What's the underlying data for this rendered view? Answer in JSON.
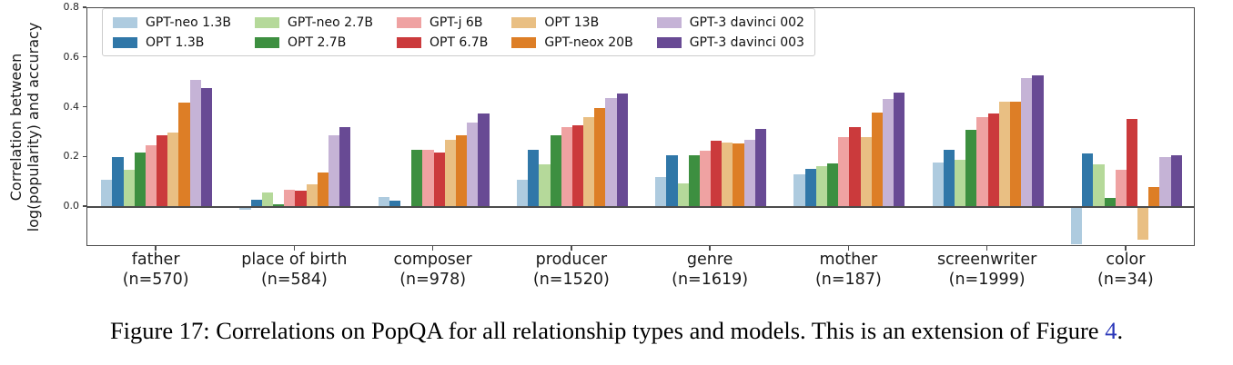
{
  "figure": {
    "caption_prefix": "Figure 17: Correlations on PopQA for all relationship types and models. This is an extension of Figure ",
    "caption_link": "4",
    "caption_suffix": ".",
    "link_color": "#2936b9"
  },
  "chart_data": {
    "type": "bar",
    "title": "",
    "ylabel_line1": "Correlation between",
    "ylabel_line2": "log(popularity) and accuracy",
    "xlabel": "",
    "ylim": [
      -0.16,
      0.8
    ],
    "yticks": [
      0.0,
      0.2,
      0.4,
      0.6,
      0.8
    ],
    "grid": false,
    "legend_position": "upper-left",
    "legend_columns": 5,
    "axis_color": "#4b4b4b",
    "categories": [
      {
        "label": "father",
        "count": "(n=570)"
      },
      {
        "label": "place of birth",
        "count": "(n=584)"
      },
      {
        "label": "composer",
        "count": "(n=978)"
      },
      {
        "label": "producer",
        "count": "(n=1520)"
      },
      {
        "label": "genre",
        "count": "(n=1619)"
      },
      {
        "label": "mother",
        "count": "(n=187)"
      },
      {
        "label": "screenwriter",
        "count": "(n=1999)"
      },
      {
        "label": "color",
        "count": "(n=34)"
      }
    ],
    "series": [
      {
        "name": "GPT-neo 1.3B",
        "color": "#aecbdf",
        "values": [
          0.11,
          -0.01,
          0.04,
          0.11,
          0.12,
          0.13,
          0.18,
          -0.15
        ]
      },
      {
        "name": "OPT 1.3B",
        "color": "#3077a8",
        "values": [
          0.2,
          0.03,
          0.025,
          0.23,
          0.21,
          0.155,
          0.23,
          0.215
        ]
      },
      {
        "name": "GPT-neo 2.7B",
        "color": "#b5d99a",
        "values": [
          0.15,
          0.06,
          0.005,
          0.17,
          0.095,
          0.165,
          0.19,
          0.17
        ]
      },
      {
        "name": "OPT 2.7B",
        "color": "#3d8f40",
        "values": [
          0.22,
          0.01,
          0.23,
          0.29,
          0.21,
          0.175,
          0.31,
          0.035
        ]
      },
      {
        "name": "GPT-j 6B",
        "color": "#efa2a2",
        "values": [
          0.25,
          0.07,
          0.23,
          0.32,
          0.225,
          0.28,
          0.36,
          0.15
        ]
      },
      {
        "name": "OPT 6.7B",
        "color": "#cb3a3c",
        "values": [
          0.29,
          0.065,
          0.22,
          0.33,
          0.265,
          0.32,
          0.375,
          0.355
        ]
      },
      {
        "name": "OPT 13B",
        "color": "#e9bf83",
        "values": [
          0.3,
          0.09,
          0.27,
          0.36,
          0.26,
          0.28,
          0.425,
          -0.13
        ]
      },
      {
        "name": "GPT-neox 20B",
        "color": "#dd7e26",
        "values": [
          0.42,
          0.14,
          0.29,
          0.4,
          0.255,
          0.38,
          0.425,
          0.08
        ]
      },
      {
        "name": "GPT-3 davinci 002",
        "color": "#c5b3d6",
        "values": [
          0.51,
          0.29,
          0.34,
          0.44,
          0.27,
          0.435,
          0.52,
          0.2
        ]
      },
      {
        "name": "GPT-3 davinci 003",
        "color": "#684a94",
        "values": [
          0.48,
          0.32,
          0.375,
          0.455,
          0.315,
          0.46,
          0.53,
          0.21
        ]
      }
    ]
  }
}
